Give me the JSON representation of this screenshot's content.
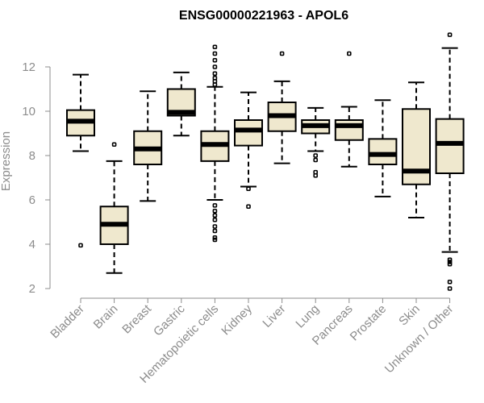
{
  "chart_data": {
    "type": "boxplot",
    "title": "ENSG00000221963 - APOL6",
    "xlabel": "",
    "ylabel": "Expression",
    "ylim": [
      2,
      13.5
    ],
    "yticks": [
      2,
      4,
      6,
      8,
      10,
      12
    ],
    "grid": false,
    "box_color": "#efe8ce",
    "axis_color": "#8c8c8c",
    "categories": [
      "Bladder",
      "Brain",
      "Breast",
      "Gastric",
      "Hematopoietic cells",
      "Kidney",
      "Liver",
      "Lung",
      "Pancreas",
      "Prostate",
      "Skin",
      "Unknown / Other"
    ],
    "boxes": [
      {
        "min": 8.2,
        "q1": 8.9,
        "median": 9.55,
        "q3": 10.05,
        "max": 11.65,
        "outliers": [
          3.95
        ]
      },
      {
        "min": 2.7,
        "q1": 4.0,
        "median": 4.9,
        "q3": 5.7,
        "max": 7.75,
        "outliers": [
          8.5
        ]
      },
      {
        "min": 5.95,
        "q1": 7.6,
        "median": 8.3,
        "q3": 9.1,
        "max": 10.9,
        "outliers": []
      },
      {
        "min": 8.9,
        "q1": 9.8,
        "median": 9.95,
        "q3": 11.0,
        "max": 11.75,
        "outliers": []
      },
      {
        "min": 6.0,
        "q1": 7.75,
        "median": 8.5,
        "q3": 9.1,
        "max": 11.1,
        "outliers": [
          12.9,
          12.6,
          12.3,
          12.0,
          11.7,
          11.5,
          11.35,
          11.2,
          5.75,
          5.5,
          5.3,
          5.1,
          4.8,
          4.6,
          4.3,
          4.2
        ]
      },
      {
        "min": 6.6,
        "q1": 8.45,
        "median": 9.15,
        "q3": 9.6,
        "max": 10.85,
        "outliers": [
          6.5,
          5.7
        ]
      },
      {
        "min": 7.65,
        "q1": 9.1,
        "median": 9.8,
        "q3": 10.4,
        "max": 11.35,
        "outliers": [
          12.6
        ]
      },
      {
        "min": 8.2,
        "q1": 9.0,
        "median": 9.35,
        "q3": 9.6,
        "max": 10.15,
        "outliers": [
          8.0,
          7.8,
          7.25,
          7.1
        ]
      },
      {
        "min": 7.5,
        "q1": 8.7,
        "median": 9.35,
        "q3": 9.6,
        "max": 10.2,
        "outliers": [
          12.6
        ]
      },
      {
        "min": 6.15,
        "q1": 7.6,
        "median": 8.05,
        "q3": 8.75,
        "max": 10.5,
        "outliers": []
      },
      {
        "min": 5.2,
        "q1": 6.7,
        "median": 7.3,
        "q3": 10.1,
        "max": 11.3,
        "outliers": []
      },
      {
        "min": 3.65,
        "q1": 7.2,
        "median": 8.55,
        "q3": 9.65,
        "max": 12.85,
        "outliers": [
          13.45,
          3.3,
          3.2,
          3.1,
          2.3,
          2.0
        ]
      }
    ]
  }
}
